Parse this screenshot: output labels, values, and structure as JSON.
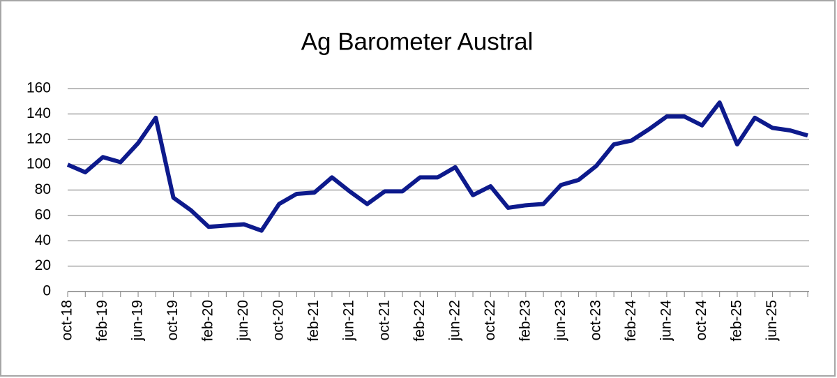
{
  "chart_data": {
    "type": "line",
    "title": "Ag Barometer Austral",
    "categories": [
      "oct-18",
      null,
      "feb-19",
      null,
      "jun-19",
      null,
      "oct-19",
      null,
      "feb-20",
      null,
      "jun-20",
      null,
      "oct-20",
      null,
      "feb-21",
      null,
      "jun-21",
      null,
      "oct-21",
      null,
      "feb-22",
      null,
      "jun-22",
      null,
      "oct-22",
      null,
      "feb-23",
      null,
      "jun-23",
      null,
      "oct-23",
      null,
      "feb-24",
      null,
      "jun-24",
      null,
      "oct-24",
      null,
      "feb-25",
      null,
      "jun-25",
      null,
      null
    ],
    "series": [
      {
        "name": "Ag Barometer Austral",
        "color": "#0d1a8c",
        "values": [
          100,
          94,
          106,
          102,
          117,
          137,
          74,
          64,
          51,
          52,
          53,
          48,
          69,
          77,
          78,
          90,
          79,
          69,
          79,
          79,
          90,
          90,
          98,
          76,
          83,
          66,
          68,
          69,
          84,
          88,
          99,
          116,
          119,
          128,
          138,
          138,
          131,
          149,
          116,
          137,
          129,
          127,
          123
        ]
      }
    ],
    "ylim": [
      0,
      160
    ],
    "yticks": [
      0,
      20,
      40,
      60,
      80,
      100,
      120,
      140,
      160
    ],
    "grid": true
  }
}
